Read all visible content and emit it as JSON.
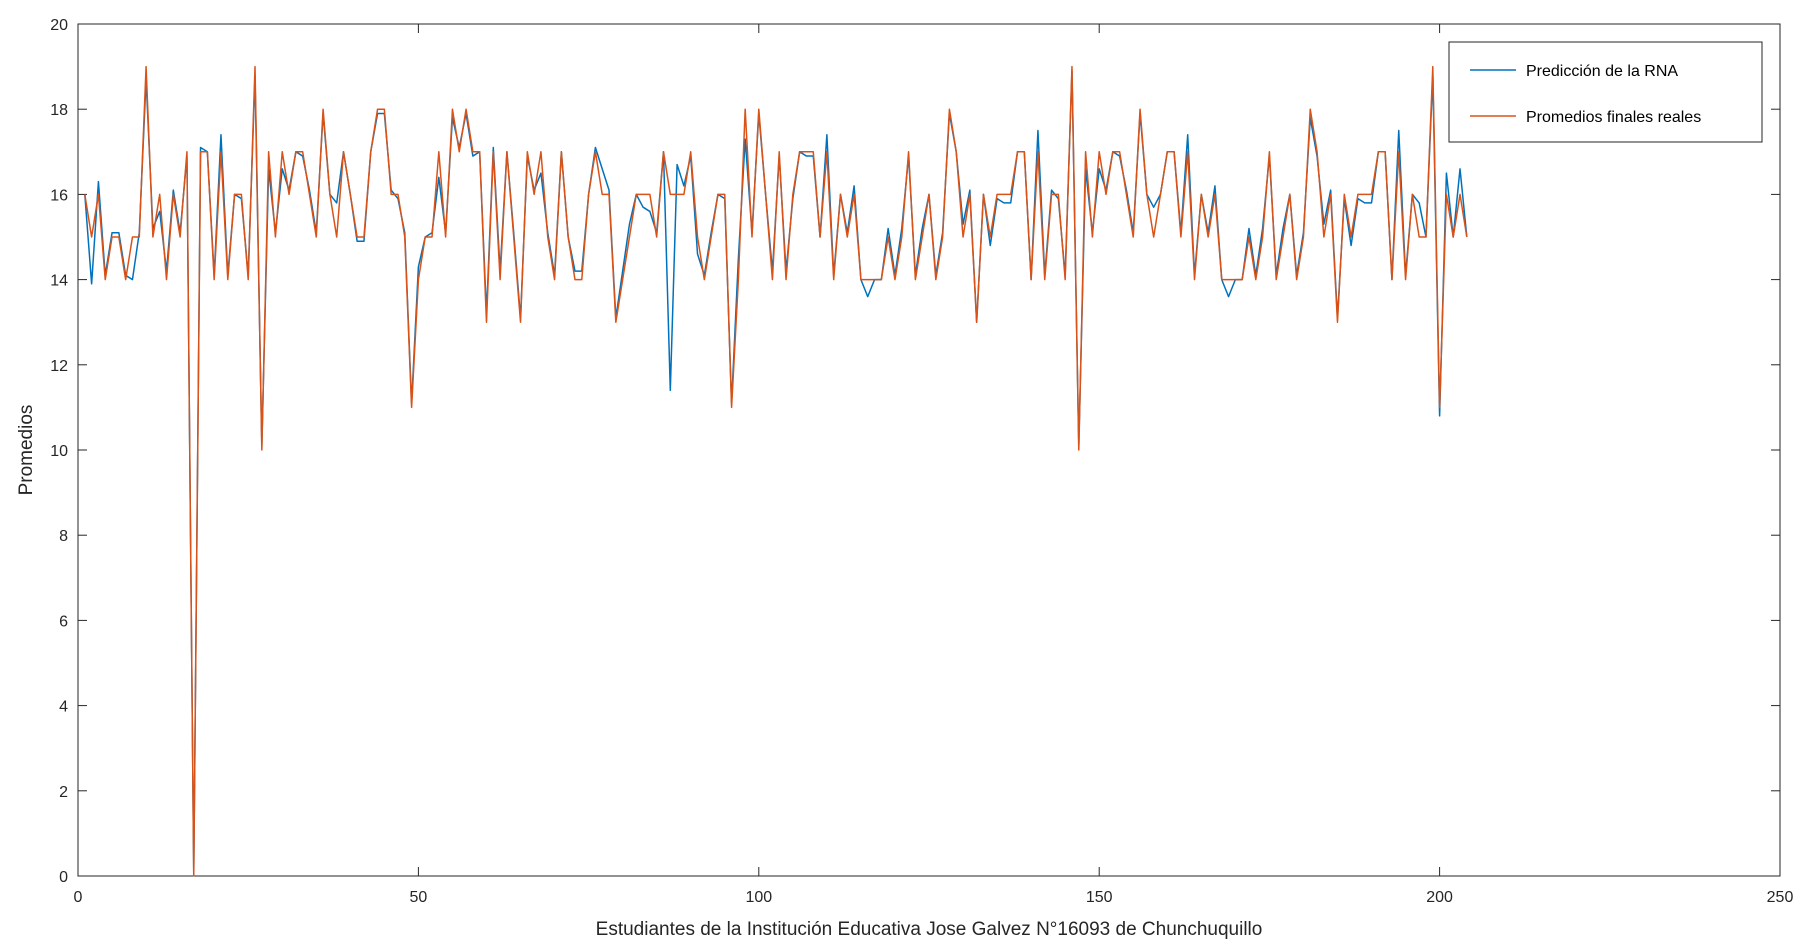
{
  "chart_data": {
    "type": "line",
    "title": "",
    "xlabel": "Estudiantes de la Institución Educativa Jose Galvez N°16093 de Chunchuquillo",
    "ylabel": "Promedios",
    "xlim": [
      0,
      250
    ],
    "ylim": [
      0,
      20
    ],
    "xticks": [
      0,
      50,
      100,
      150,
      200,
      250
    ],
    "yticks": [
      0,
      2,
      4,
      6,
      8,
      10,
      12,
      14,
      16,
      18,
      20
    ],
    "xtick_labels": [
      "0",
      "50",
      "100",
      "150",
      "200",
      "250"
    ],
    "ytick_labels": [
      "0",
      "2",
      "4",
      "6",
      "8",
      "10",
      "12",
      "14",
      "16",
      "18",
      "20"
    ],
    "grid": false,
    "legend_position": "top-right",
    "x_start": 1,
    "series": [
      {
        "name": "Predicción de la RNA",
        "color": "#0072BD",
        "values": [
          16.0,
          13.9,
          16.3,
          14.1,
          15.1,
          15.1,
          14.1,
          14.0,
          15.1,
          18.7,
          15.2,
          15.6,
          14.2,
          16.1,
          15.1,
          16.9,
          0.1,
          17.1,
          17.0,
          14.1,
          17.4,
          14.1,
          16.0,
          15.9,
          14.1,
          18.8,
          10.1,
          16.6,
          15.1,
          16.6,
          16.1,
          17.0,
          16.9,
          16.1,
          15.1,
          17.9,
          16.0,
          15.8,
          17.0,
          16.0,
          14.9,
          14.9,
          17.0,
          17.9,
          17.9,
          16.1,
          15.9,
          15.1,
          11.1,
          14.3,
          15.0,
          15.1,
          16.4,
          15.1,
          17.8,
          17.1,
          17.9,
          16.9,
          17.0,
          13.2,
          17.1,
          14.2,
          17.0,
          15.1,
          13.1,
          16.9,
          16.1,
          16.5,
          15.1,
          14.1,
          17.0,
          15.0,
          14.2,
          14.2,
          16.0,
          17.1,
          16.6,
          16.1,
          13.1,
          14.2,
          15.3,
          16.0,
          15.7,
          15.6,
          15.1,
          17.0,
          11.4,
          16.7,
          16.2,
          16.9,
          14.6,
          14.1,
          15.1,
          16.0,
          15.9,
          11.1,
          14.5,
          17.3,
          15.1,
          17.9,
          16.0,
          14.2,
          16.9,
          14.2,
          15.9,
          17.0,
          16.9,
          16.9,
          15.0,
          17.4,
          14.1,
          16.0,
          15.1,
          16.2,
          14.0,
          13.6,
          14.0,
          14.0,
          15.2,
          14.1,
          15.2,
          16.9,
          14.1,
          15.2,
          16.0,
          14.1,
          15.1,
          17.9,
          17.0,
          15.3,
          16.1,
          13.0,
          16.0,
          14.8,
          15.9,
          15.8,
          15.8,
          17.0,
          17.0,
          14.0,
          17.5,
          14.1,
          16.1,
          15.9,
          14.1,
          18.9,
          10.1,
          16.6,
          15.1,
          16.6,
          16.1,
          17.0,
          16.9,
          16.1,
          15.1,
          17.9,
          16.0,
          15.7,
          16.0,
          17.0,
          17.0,
          15.1,
          17.4,
          14.1,
          16.0,
          15.1,
          16.2,
          14.0,
          13.6,
          14.0,
          14.0,
          15.2,
          14.1,
          15.2,
          16.9,
          14.1,
          15.2,
          16.0,
          14.1,
          15.1,
          17.8,
          16.9,
          15.3,
          16.1,
          13.1,
          15.9,
          14.8,
          15.9,
          15.8,
          15.8,
          17.0,
          17.0,
          14.0,
          17.5,
          14.1,
          16.0,
          15.8,
          15.0,
          18.8,
          10.8,
          16.5,
          15.0,
          16.6,
          15.0
        ]
      },
      {
        "name": "Promedios finales reales",
        "color": "#D95319",
        "values": [
          16,
          15,
          16,
          14,
          15,
          15,
          14,
          15,
          15,
          19,
          15,
          16,
          14,
          16,
          15,
          17,
          0,
          17,
          17,
          14,
          17,
          14,
          16,
          16,
          14,
          19,
          10,
          17,
          15,
          17,
          16,
          17,
          17,
          16,
          15,
          18,
          16,
          15,
          17,
          16,
          15,
          15,
          17,
          18,
          18,
          16,
          16,
          15,
          11,
          14,
          15,
          15,
          17,
          15,
          18,
          17,
          18,
          17,
          17,
          13,
          17,
          14,
          17,
          15,
          13,
          17,
          16,
          17,
          15,
          14,
          17,
          15,
          14,
          14,
          16,
          17,
          16,
          16,
          13,
          14,
          15,
          16,
          16,
          16,
          15,
          17,
          16,
          16,
          16,
          17,
          15,
          14,
          15,
          16,
          16,
          11,
          14,
          18,
          15,
          18,
          16,
          14,
          17,
          14,
          16,
          17,
          17,
          17,
          15,
          17,
          14,
          16,
          15,
          16,
          14,
          14,
          14,
          14,
          15,
          14,
          15,
          17,
          14,
          15,
          16,
          14,
          15,
          18,
          17,
          15,
          16,
          13,
          16,
          15,
          16,
          16,
          16,
          17,
          17,
          14,
          17,
          14,
          16,
          16,
          14,
          19,
          10,
          17,
          15,
          17,
          16,
          17,
          17,
          16,
          15,
          18,
          16,
          15,
          16,
          17,
          17,
          15,
          17,
          14,
          16,
          15,
          16,
          14,
          14,
          14,
          14,
          15,
          14,
          15,
          17,
          14,
          15,
          16,
          14,
          15,
          18,
          17,
          15,
          16,
          13,
          16,
          15,
          16,
          16,
          16,
          17,
          17,
          14,
          17,
          14,
          16,
          15,
          15,
          19,
          11,
          16,
          15,
          16,
          15
        ]
      }
    ]
  }
}
